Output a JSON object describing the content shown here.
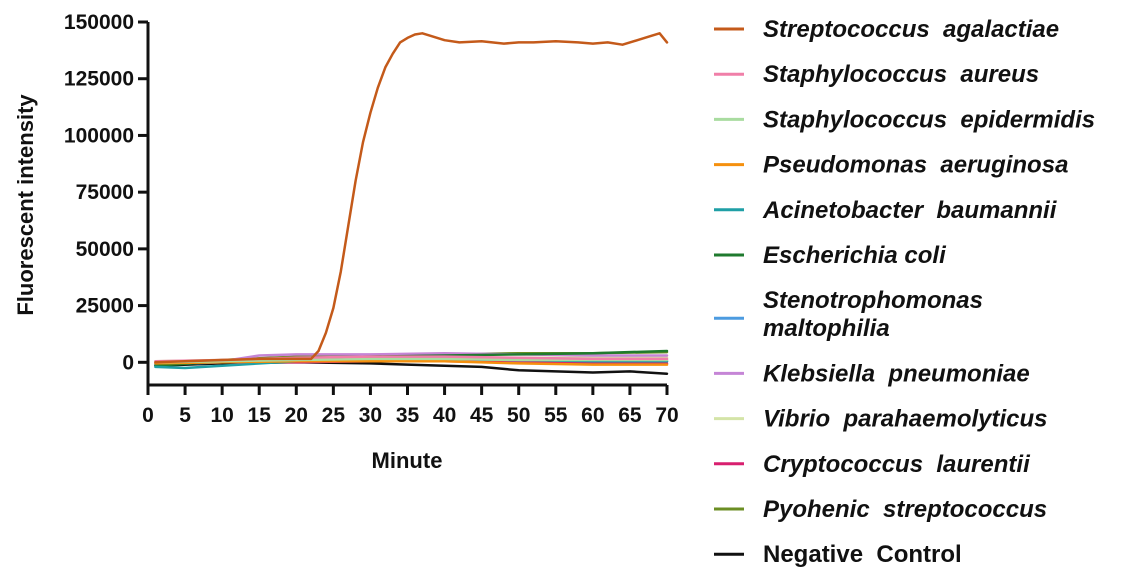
{
  "chart_data": {
    "type": "line",
    "xlabel": "Minute",
    "ylabel": "Fluorescent intensity",
    "xlim": [
      0,
      70
    ],
    "ylim": [
      -10000,
      150000
    ],
    "xticks": [
      0,
      5,
      10,
      15,
      20,
      25,
      30,
      35,
      40,
      45,
      50,
      55,
      60,
      65,
      70
    ],
    "yticks": [
      0,
      25000,
      50000,
      75000,
      100000,
      125000,
      150000
    ],
    "grid": false,
    "legend_position": "right",
    "series": [
      {
        "name": "Streptococcus agalactiae",
        "label_lines": [
          "Streptococcus  agalactiae"
        ],
        "italic": true,
        "color": "#c45a1a",
        "x": [
          1,
          5,
          10,
          15,
          20,
          22,
          23,
          24,
          25,
          26,
          27,
          28,
          29,
          30,
          31,
          32,
          33,
          34,
          35,
          36,
          37,
          38,
          40,
          42,
          45,
          48,
          50,
          52,
          55,
          58,
          60,
          62,
          64,
          66,
          68,
          69,
          70
        ],
        "y": [
          0,
          500,
          1000,
          1500,
          1500,
          1500,
          5000,
          13000,
          24000,
          40000,
          60000,
          80000,
          97000,
          110000,
          121000,
          130000,
          136000,
          141000,
          143000,
          144500,
          145000,
          144000,
          142000,
          141000,
          141500,
          140500,
          141000,
          141000,
          141500,
          141000,
          140500,
          141000,
          140000,
          142000,
          144000,
          145000,
          141000
        ]
      },
      {
        "name": "Staphylococcus aureus",
        "label_lines": [
          "Staphylococcus  aureus"
        ],
        "italic": true,
        "color": "#f07fa8",
        "x": [
          1,
          10,
          20,
          30,
          40,
          50,
          60,
          70
        ],
        "y": [
          500,
          1000,
          2000,
          2500,
          2500,
          2000,
          1500,
          1500
        ]
      },
      {
        "name": "Staphylococcus epidermidis",
        "label_lines": [
          "Staphylococcus  epidermidis"
        ],
        "italic": true,
        "color": "#a9dca0",
        "x": [
          1,
          10,
          20,
          30,
          40,
          50,
          60,
          70
        ],
        "y": [
          0,
          500,
          1000,
          1500,
          1500,
          1000,
          1000,
          1000
        ]
      },
      {
        "name": "Pseudomonas aeruginosa",
        "label_lines": [
          "Pseudomonas  aeruginosa"
        ],
        "italic": true,
        "color": "#f5900e",
        "x": [
          1,
          10,
          20,
          30,
          40,
          50,
          60,
          70
        ],
        "y": [
          -500,
          0,
          500,
          500,
          500,
          -500,
          -1000,
          -1000
        ]
      },
      {
        "name": "Acinetobacter baumannii",
        "label_lines": [
          "Acinetobacter  baumannii"
        ],
        "italic": true,
        "color": "#1f9fa6",
        "x": [
          1,
          5,
          10,
          20,
          30,
          40,
          50,
          60,
          70
        ],
        "y": [
          -2000,
          -2500,
          -1500,
          500,
          1500,
          1500,
          1000,
          500,
          500
        ]
      },
      {
        "name": "Escherichia coli",
        "label_lines": [
          "Escherichia coli"
        ],
        "italic": true,
        "color": "#1f7a2e",
        "x": [
          1,
          10,
          20,
          30,
          40,
          50,
          60,
          70
        ],
        "y": [
          -1500,
          500,
          2000,
          2500,
          3000,
          3500,
          4000,
          5000
        ]
      },
      {
        "name": "Stenotrophomonas maltophilia",
        "label_lines": [
          "Stenotrophomonas",
          "maltophilia"
        ],
        "italic": true,
        "color": "#4c9be0",
        "x": [
          1,
          10,
          20,
          30,
          40,
          50,
          60,
          70
        ],
        "y": [
          -1000,
          0,
          1000,
          1500,
          1500,
          1000,
          1000,
          500
        ]
      },
      {
        "name": "Klebsiella pneumoniae",
        "label_lines": [
          "Klebsiella  pneumoniae"
        ],
        "italic": true,
        "color": "#c585d6",
        "x": [
          1,
          10,
          15,
          20,
          30,
          40,
          50,
          60,
          70
        ],
        "y": [
          0,
          500,
          3000,
          3500,
          3500,
          4000,
          3500,
          3000,
          3000
        ]
      },
      {
        "name": "Vibrio parahaemolyticus",
        "label_lines": [
          "Vibrio  parahaemolyticus"
        ],
        "italic": true,
        "color": "#d4e4a8",
        "x": [
          1,
          10,
          20,
          30,
          40,
          50,
          60,
          70
        ],
        "y": [
          500,
          1000,
          1500,
          2000,
          2000,
          2000,
          2000,
          2000
        ]
      },
      {
        "name": "Cryptococcus laurentii",
        "label_lines": [
          "Cryptococcus  laurentii"
        ],
        "italic": true,
        "color": "#d81f6f",
        "x": [
          1,
          10,
          20,
          30,
          40,
          50,
          60,
          70
        ],
        "y": [
          -500,
          0,
          0,
          500,
          500,
          0,
          -500,
          -500
        ]
      },
      {
        "name": "Pyohenic streptococcus",
        "label_lines": [
          "Pyohenic  streptococcus"
        ],
        "italic": true,
        "color": "#6b8e23",
        "x": [
          1,
          10,
          20,
          30,
          40,
          50,
          60,
          70
        ],
        "y": [
          -1000,
          1000,
          2500,
          3000,
          3500,
          4000,
          4000,
          4500
        ]
      },
      {
        "name": "Negative Control",
        "label_lines": [
          "Negative  Control"
        ],
        "italic": false,
        "color": "#111111",
        "x": [
          1,
          10,
          20,
          30,
          35,
          40,
          45,
          50,
          55,
          60,
          65,
          70
        ],
        "y": [
          -1500,
          -500,
          0,
          -500,
          -1000,
          -1500,
          -2000,
          -3500,
          -4000,
          -4500,
          -4000,
          -5000
        ]
      }
    ]
  }
}
